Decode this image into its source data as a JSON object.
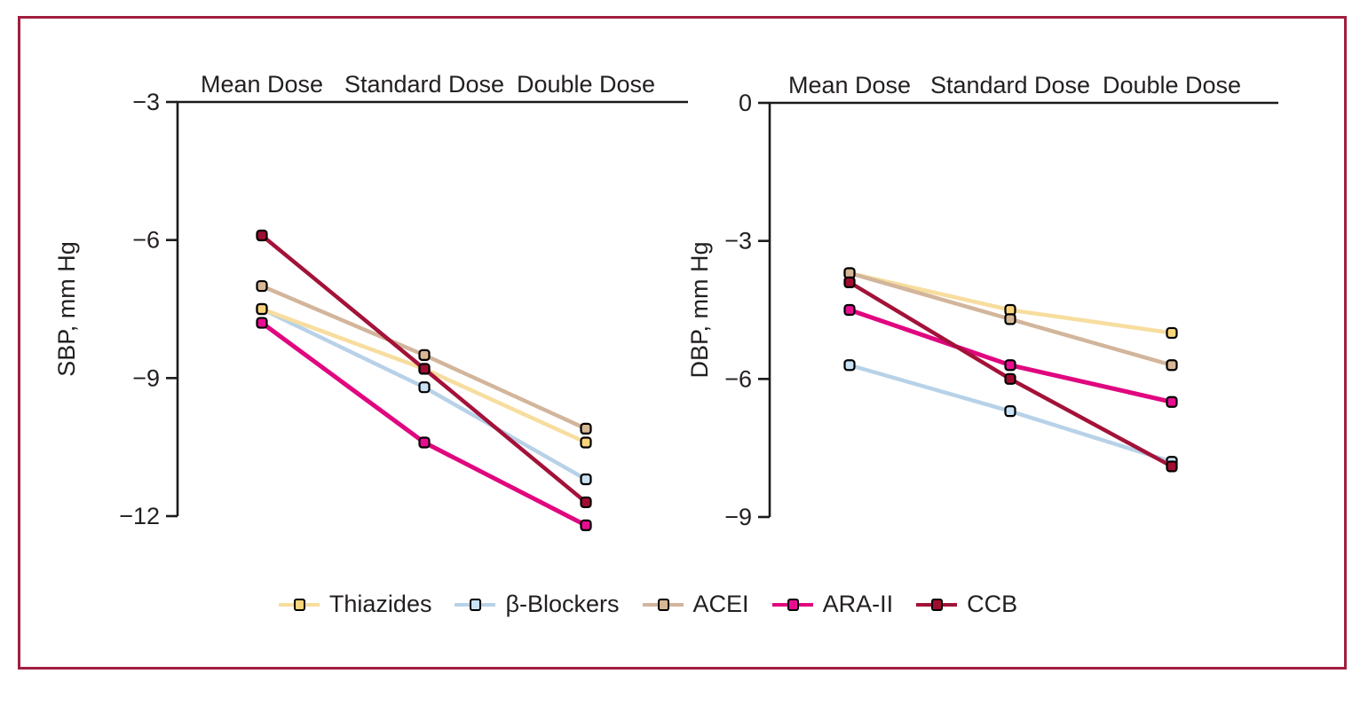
{
  "figure": {
    "border_color": "#A11E3E",
    "background_color": "#FFFFFF",
    "axis_color": "#1A1A1A",
    "text_color": "#231F20"
  },
  "legend": {
    "items": [
      {
        "label": "Thiazides",
        "series_key": "thiazides"
      },
      {
        "label": "β-Blockers",
        "series_key": "beta_blockers"
      },
      {
        "label": "ACEI",
        "series_key": "acei"
      },
      {
        "label": "ARA-II",
        "series_key": "ara_ii"
      },
      {
        "label": "CCB",
        "series_key": "ccb"
      }
    ]
  },
  "series_styles": {
    "thiazides": {
      "line": "#F7DD9E",
      "fill": "#FBD57B",
      "lw": 4.5
    },
    "beta_blockers": {
      "line": "#B7D2E8",
      "fill": "#C9E2F5",
      "lw": 4.5
    },
    "acei": {
      "line": "#D2B59B",
      "fill": "#D7B795",
      "lw": 4.5
    },
    "ara_ii": {
      "line": "#E0067F",
      "fill": "#E90D92",
      "lw": 5
    },
    "ccb": {
      "line": "#A31239",
      "fill": "#A00D31",
      "lw": 4.5
    }
  },
  "chart_data": [
    {
      "type": "line",
      "title": "",
      "xlabel": "",
      "ylabel": "SBP, mm Hg",
      "categories": [
        "Mean Dose",
        "Standard Dose",
        "Double Dose"
      ],
      "yticks": [
        -3,
        -6,
        -9,
        -12
      ],
      "ylim": [
        -3,
        -12
      ],
      "grid": false,
      "legend_position": "bottom",
      "series": [
        {
          "name": "Thiazides",
          "key": "thiazides",
          "values": [
            -7.5,
            -8.8,
            -10.4
          ]
        },
        {
          "name": "β-Blockers",
          "key": "beta_blockers",
          "values": [
            -7.5,
            -9.2,
            -11.2
          ]
        },
        {
          "name": "ACEI",
          "key": "acei",
          "values": [
            -7.0,
            -8.5,
            -10.1
          ]
        },
        {
          "name": "ARA-II",
          "key": "ara_ii",
          "values": [
            -7.8,
            -10.4,
            -12.2
          ]
        },
        {
          "name": "CCB",
          "key": "ccb",
          "values": [
            -5.9,
            -8.8,
            -11.7
          ]
        }
      ],
      "draw_order": [
        "beta_blockers",
        "thiazides",
        "acei",
        "ara_ii",
        "ccb"
      ]
    },
    {
      "type": "line",
      "title": "",
      "xlabel": "",
      "ylabel": "DBP, mm Hg",
      "categories": [
        "Mean Dose",
        "Standard Dose",
        "Double Dose"
      ],
      "yticks": [
        0,
        -3,
        -6,
        -9
      ],
      "ylim": [
        0,
        -9
      ],
      "grid": false,
      "legend_position": "bottom",
      "series": [
        {
          "name": "Thiazides",
          "key": "thiazides",
          "values": [
            -3.7,
            -4.5,
            -5.0
          ]
        },
        {
          "name": "β-Blockers",
          "key": "beta_blockers",
          "values": [
            -5.7,
            -6.7,
            -7.8
          ]
        },
        {
          "name": "ACEI",
          "key": "acei",
          "values": [
            -3.7,
            -4.7,
            -5.7
          ]
        },
        {
          "name": "ARA-II",
          "key": "ara_ii",
          "values": [
            -4.5,
            -5.7,
            -6.5
          ]
        },
        {
          "name": "CCB",
          "key": "ccb",
          "values": [
            -3.9,
            -6.0,
            -7.9
          ]
        }
      ],
      "draw_order": [
        "beta_blockers",
        "thiazides",
        "acei",
        "ara_ii",
        "ccb"
      ]
    }
  ]
}
